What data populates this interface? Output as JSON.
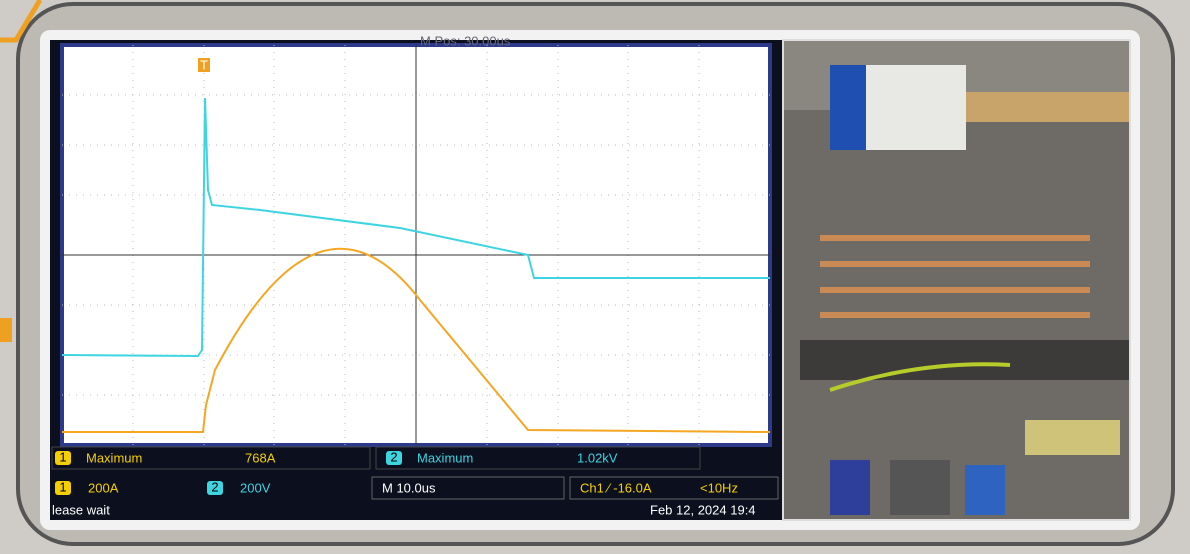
{
  "scope": {
    "top_label": "M Pos: 30.00us",
    "trigger_marker": "T",
    "measurements": [
      {
        "channel": "1",
        "label": "Maximum",
        "value": "768A"
      },
      {
        "channel": "2",
        "label": "Maximum",
        "value": "1.02kV"
      }
    ],
    "scales": [
      {
        "channel": "1",
        "value": "200A"
      },
      {
        "channel": "2",
        "value": "200V"
      }
    ],
    "timebase": "M 10.0us",
    "trigger": "Ch1 ∕ -16.0A",
    "trigger_freq": "<10Hz",
    "status": "lease wait",
    "date": "Feb 12, 2024  19:4"
  }
}
